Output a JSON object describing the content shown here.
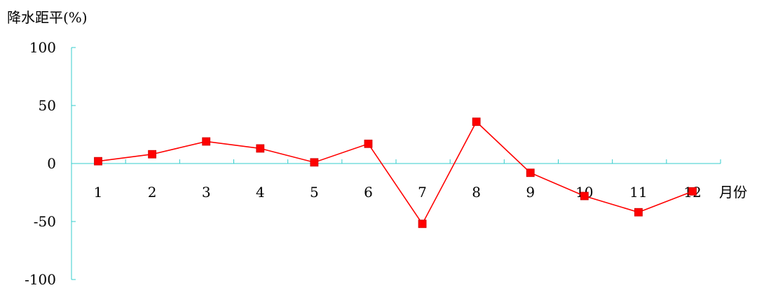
{
  "chart_data": {
    "type": "line",
    "title": "",
    "ylabel": "降水距平(%)",
    "xlabel": "月份",
    "categories": [
      "1",
      "2",
      "3",
      "4",
      "5",
      "6",
      "7",
      "8",
      "9",
      "10",
      "11",
      "12"
    ],
    "series": [
      {
        "values": [
          2,
          8,
          19,
          13,
          1,
          17,
          -52,
          36,
          -8,
          -28,
          -42,
          -24
        ]
      }
    ],
    "ylim": [
      -100,
      100
    ],
    "yticks": [
      "100",
      "50",
      "0",
      "-50",
      "-100"
    ],
    "grid": false,
    "legend": "none",
    "colors": {
      "series": "#ff0000",
      "axis": "#33cccc",
      "text": "#000000"
    }
  }
}
